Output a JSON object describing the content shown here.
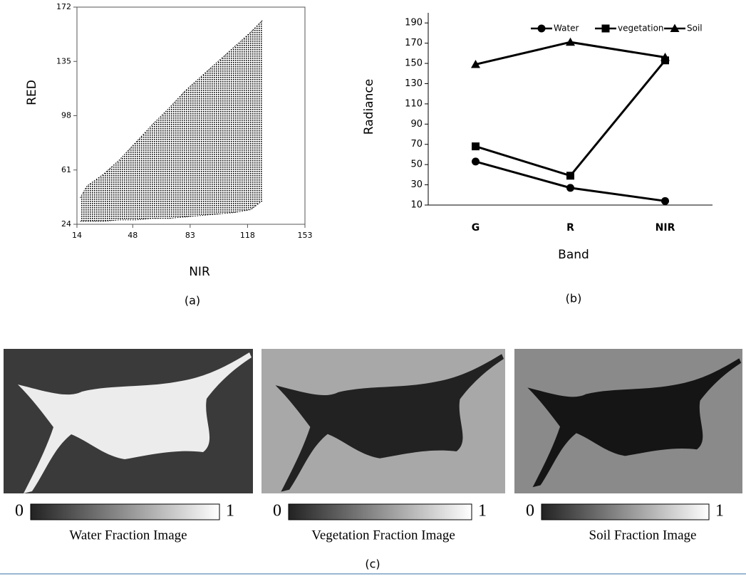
{
  "chart_data": [
    {
      "type": "area-range",
      "xlabel": "NIR",
      "ylabel": "RED",
      "x": [
        16,
        20,
        30,
        40,
        50,
        60,
        70,
        80,
        90,
        100,
        110,
        120,
        127
      ],
      "upper": [
        42,
        50,
        58,
        68,
        80,
        92,
        103,
        115,
        125,
        135,
        145,
        155,
        163
      ],
      "lower": [
        26,
        26,
        26,
        27,
        27,
        28,
        28,
        29,
        30,
        31,
        32,
        34,
        40
      ],
      "color": "#000000",
      "xlim": [
        14,
        153
      ],
      "xticks": [
        14,
        48,
        83,
        118,
        153
      ],
      "ylim": [
        24,
        172
      ],
      "yticks": [
        24,
        61,
        98,
        135,
        172
      ]
    },
    {
      "type": "line",
      "xlabel": "Band",
      "ylabel": "Radiance",
      "categories": [
        "G",
        "R",
        "NIR"
      ],
      "series": [
        {
          "name": "Water",
          "color": "#000000",
          "marker": "circle",
          "values": [
            53,
            27,
            14
          ]
        },
        {
          "name": "vegetation",
          "color": "#000000",
          "marker": "square",
          "values": [
            68,
            39,
            153
          ]
        },
        {
          "name": "Soil",
          "color": "#000000",
          "marker": "triangle",
          "values": [
            149,
            171,
            156
          ]
        }
      ],
      "ylim": [
        10,
        200
      ],
      "yticks": [
        10,
        30,
        50,
        70,
        90,
        110,
        130,
        150,
        170,
        190
      ],
      "legend": "top"
    }
  ],
  "panel_labels": [
    "(a)",
    "(b)",
    "(c)"
  ],
  "fraction_images": [
    {
      "caption": "Water Fraction Image",
      "scale_min": "0",
      "scale_max": "1"
    },
    {
      "caption": "Vegetation Fraction Image",
      "scale_min": "0",
      "scale_max": "1"
    },
    {
      "caption": "Soil Fraction Image",
      "scale_min": "0",
      "scale_max": "1"
    }
  ]
}
